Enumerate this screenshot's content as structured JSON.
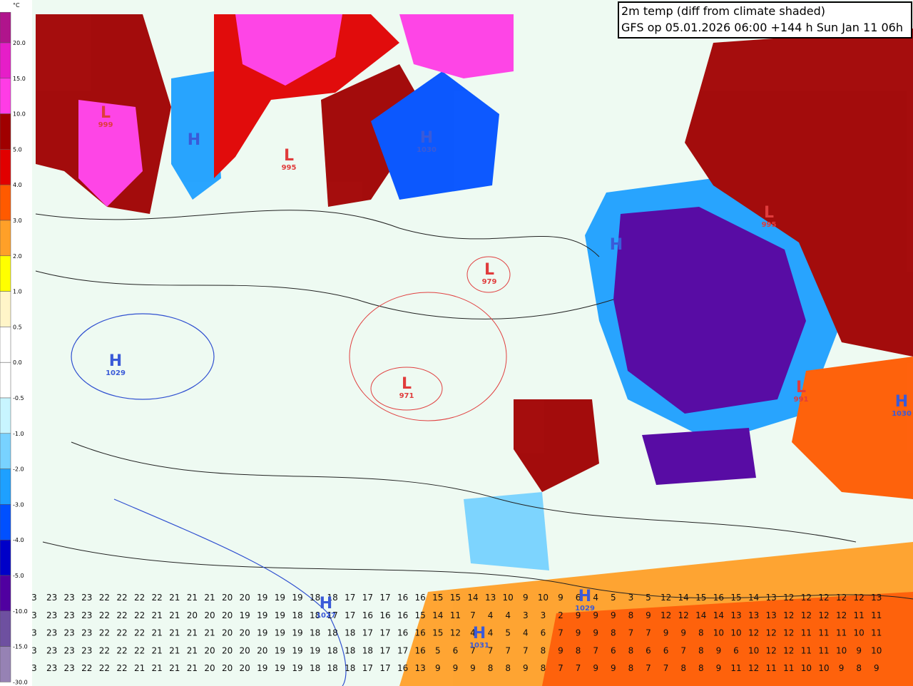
{
  "header": {
    "title": "2m temp (diff from climate shaded)",
    "subtitle": "GFS op 05.01.2026 06:00 +144 h Sun Jan 11 06h"
  },
  "colorbar": {
    "unit": "°C",
    "labels": [
      "20.0",
      "15.0",
      "10.0",
      "5.0",
      "4.0",
      "3.0",
      "2.0",
      "1.0",
      "0.5",
      "0.0",
      "-0.5",
      "-1.0",
      "-2.0",
      "-3.0",
      "-4.0",
      "-5.0",
      "-10.0",
      "-15.0",
      "-30.0"
    ],
    "colors": [
      "#b0148c",
      "#e61ec8",
      "#ff3ce6",
      "#a00000",
      "#e10000",
      "#ff5a00",
      "#ffa028",
      "#ffff00",
      "#fff5c8",
      "#ffffff",
      "#ffffff",
      "#c8f5ff",
      "#78d2ff",
      "#1ea0ff",
      "#0050ff",
      "#0000c8",
      "#5000a0",
      "#6e50a0",
      "#9682b4"
    ]
  },
  "pressure_centers": [
    {
      "kind": "L",
      "value": 999
    },
    {
      "kind": "H",
      "value": null
    },
    {
      "kind": "L",
      "value": 995
    },
    {
      "kind": "H",
      "value": 1030
    },
    {
      "kind": "L",
      "value": 979
    },
    {
      "kind": "H",
      "value": 1029
    },
    {
      "kind": "L",
      "value": 971
    },
    {
      "kind": "H",
      "value": null
    },
    {
      "kind": "L",
      "value": 995
    },
    {
      "kind": "L",
      "value": 991
    },
    {
      "kind": "H",
      "value": 1030
    },
    {
      "kind": "H",
      "value": 1027
    },
    {
      "kind": "H",
      "value": 1029
    },
    {
      "kind": "H",
      "value": 1031
    }
  ],
  "temperature_rows": [
    [
      3,
      23,
      23,
      23,
      22,
      22,
      22,
      22,
      21,
      21,
      21,
      20,
      20,
      19,
      19,
      19,
      18,
      18,
      17,
      17,
      17,
      16,
      16,
      15,
      15,
      14,
      13,
      10,
      9,
      10,
      9,
      6,
      4,
      5,
      3,
      5,
      12,
      14,
      15,
      16,
      15,
      14,
      13,
      12,
      12,
      12,
      12,
      12,
      13
    ],
    [
      3,
      23,
      23,
      23,
      22,
      22,
      22,
      21,
      21,
      20,
      20,
      20,
      19,
      19,
      19,
      18,
      18,
      17,
      17,
      16,
      16,
      16,
      15,
      14,
      11,
      7,
      4,
      4,
      3,
      3,
      2,
      9,
      9,
      9,
      8,
      9,
      12,
      12,
      14,
      14,
      13,
      13,
      13,
      12,
      12,
      12,
      12,
      11,
      11
    ],
    [
      3,
      23,
      23,
      23,
      22,
      22,
      22,
      21,
      21,
      21,
      21,
      20,
      20,
      19,
      19,
      19,
      18,
      18,
      18,
      17,
      17,
      16,
      16,
      15,
      12,
      4,
      4,
      5,
      4,
      6,
      7,
      9,
      9,
      8,
      7,
      7,
      9,
      9,
      8,
      10,
      10,
      12,
      12,
      12,
      11,
      11,
      11,
      10,
      11
    ],
    [
      3,
      23,
      23,
      23,
      22,
      22,
      22,
      21,
      21,
      21,
      20,
      20,
      20,
      20,
      19,
      19,
      19,
      18,
      18,
      18,
      17,
      17,
      16,
      5,
      6,
      7,
      7,
      7,
      7,
      8,
      9,
      8,
      7,
      6,
      8,
      6,
      6,
      7,
      8,
      9,
      6,
      10,
      12,
      12,
      11,
      11,
      10,
      9,
      10
    ],
    [
      3,
      23,
      23,
      22,
      22,
      22,
      21,
      21,
      21,
      21,
      20,
      20,
      20,
      19,
      19,
      19,
      18,
      18,
      18,
      17,
      17,
      16,
      13,
      9,
      9,
      9,
      8,
      8,
      9,
      8,
      7,
      7,
      9,
      9,
      8,
      7,
      7,
      8,
      8,
      9,
      11,
      12,
      11,
      11,
      10,
      10,
      9,
      8,
      9
    ]
  ]
}
